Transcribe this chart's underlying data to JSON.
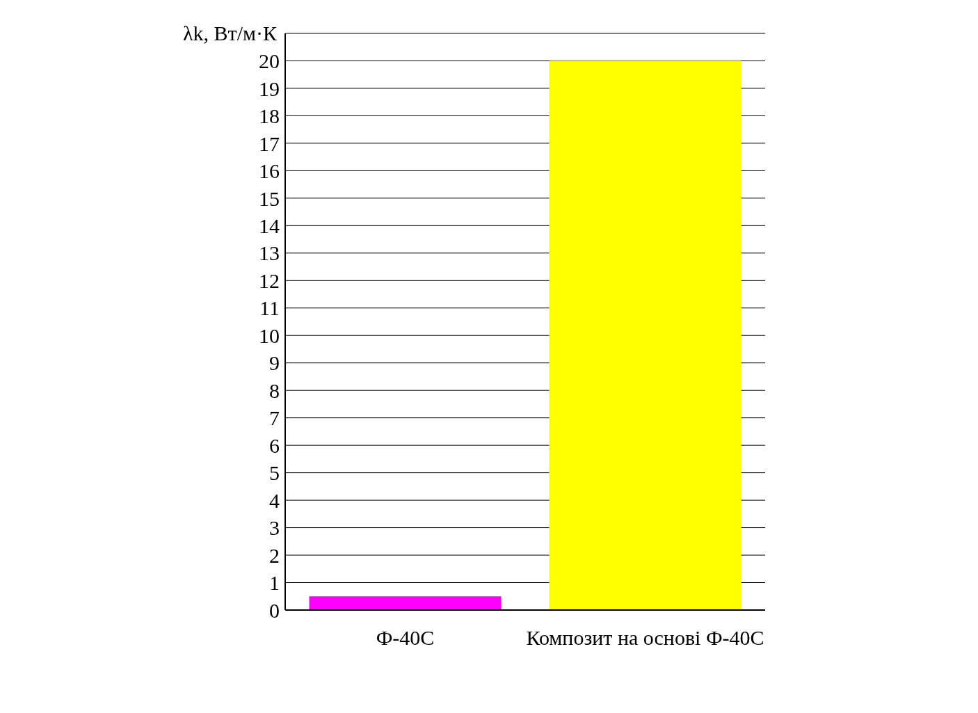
{
  "chart_data": {
    "type": "bar",
    "ylabel": "λk, Вт/м·К",
    "categories": [
      "Ф-40С",
      "Композит на основі Ф-40С"
    ],
    "values": [
      0.5,
      20
    ],
    "colors": [
      "#ff00ff",
      "#ffff00"
    ],
    "ylim": [
      0,
      21
    ],
    "yticks": [
      0,
      1,
      2,
      3,
      4,
      5,
      6,
      7,
      8,
      9,
      10,
      11,
      12,
      13,
      14,
      15,
      16,
      17,
      18,
      19,
      20
    ],
    "grid": "y"
  }
}
